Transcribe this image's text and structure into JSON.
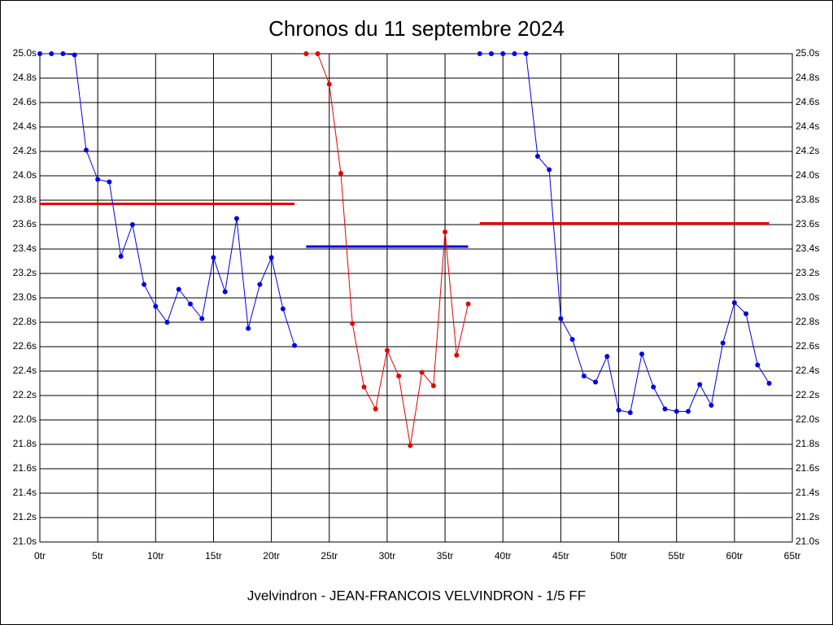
{
  "chart_data": {
    "type": "line",
    "title": "Chronos du 11 septembre 2024",
    "footer": "Jvelvindron - JEAN-FRANCOIS VELVINDRON - 1/5 FF",
    "xlim": [
      0,
      65
    ],
    "xticks": [
      {
        "value": 0,
        "label": "0tr"
      },
      {
        "value": 5,
        "label": "5tr"
      },
      {
        "value": 10,
        "label": "10tr"
      },
      {
        "value": 15,
        "label": "15tr"
      },
      {
        "value": 20,
        "label": "20tr"
      },
      {
        "value": 25,
        "label": "25tr"
      },
      {
        "value": 30,
        "label": "30tr"
      },
      {
        "value": 35,
        "label": "35tr"
      },
      {
        "value": 40,
        "label": "40tr"
      },
      {
        "value": 45,
        "label": "45tr"
      },
      {
        "value": 50,
        "label": "50tr"
      },
      {
        "value": 55,
        "label": "55tr"
      },
      {
        "value": 60,
        "label": "60tr"
      },
      {
        "value": 65,
        "label": "65tr"
      }
    ],
    "ylim": [
      21.0,
      25.0
    ],
    "yticks": [
      {
        "value": 21.0,
        "label": "21.0s"
      },
      {
        "value": 21.2,
        "label": "21.2s"
      },
      {
        "value": 21.4,
        "label": "21.4s"
      },
      {
        "value": 21.6,
        "label": "21.6s"
      },
      {
        "value": 21.8,
        "label": "21.8s"
      },
      {
        "value": 22.0,
        "label": "22.0s"
      },
      {
        "value": 22.2,
        "label": "22.2s"
      },
      {
        "value": 22.4,
        "label": "22.4s"
      },
      {
        "value": 22.6,
        "label": "22.6s"
      },
      {
        "value": 22.8,
        "label": "22.8s"
      },
      {
        "value": 23.0,
        "label": "23.0s"
      },
      {
        "value": 23.2,
        "label": "23.2s"
      },
      {
        "value": 23.4,
        "label": "23.4s"
      },
      {
        "value": 23.6,
        "label": "23.6s"
      },
      {
        "value": 23.8,
        "label": "23.8s"
      },
      {
        "value": 24.0,
        "label": "24.0s"
      },
      {
        "value": 24.2,
        "label": "24.2s"
      },
      {
        "value": 24.4,
        "label": "24.4s"
      },
      {
        "value": 24.6,
        "label": "24.6s"
      },
      {
        "value": 24.8,
        "label": "24.8s"
      },
      {
        "value": 25.0,
        "label": "25.0s"
      }
    ],
    "grid": true,
    "series": [
      {
        "color": "#0000e6",
        "x": [
          0,
          1,
          2,
          3,
          4,
          5,
          6,
          7,
          8,
          9,
          10,
          11,
          12,
          13,
          14,
          15,
          16,
          17,
          18,
          19,
          20,
          21,
          22
        ],
        "values": [
          25.0,
          25.0,
          25.0,
          24.99,
          24.21,
          23.97,
          23.95,
          23.34,
          23.6,
          23.11,
          22.93,
          22.8,
          23.07,
          22.95,
          22.83,
          23.33,
          23.05,
          23.65,
          22.75,
          23.11,
          23.33,
          22.91,
          22.61
        ]
      },
      {
        "color": "#e60000",
        "x": [
          23,
          24,
          25,
          26,
          27,
          28,
          29,
          30,
          31,
          32,
          33,
          34,
          35,
          36,
          37
        ],
        "values": [
          25.0,
          25.0,
          24.75,
          24.02,
          22.79,
          22.27,
          22.09,
          22.57,
          22.36,
          21.79,
          22.39,
          22.28,
          23.54,
          22.53,
          22.95
        ]
      },
      {
        "color": "#0000e6",
        "x": [
          38,
          39,
          40,
          41,
          42,
          43,
          44,
          45,
          46,
          47,
          48,
          49,
          50,
          51,
          52,
          53,
          54,
          55,
          56,
          57,
          58,
          59,
          60,
          61,
          62,
          63
        ],
        "values": [
          25.0,
          25.0,
          25.0,
          25.0,
          25.0,
          24.16,
          24.05,
          22.83,
          22.66,
          22.36,
          22.31,
          22.52,
          22.08,
          22.06,
          22.54,
          22.27,
          22.09,
          22.07,
          22.07,
          22.29,
          22.12,
          22.63,
          22.96,
          22.87,
          22.45,
          22.3
        ]
      }
    ],
    "average_lines": [
      {
        "color": "#e60000",
        "x": [
          0,
          22
        ],
        "values": [
          23.77,
          23.77
        ]
      },
      {
        "color": "#0000e6",
        "x": [
          23,
          37
        ],
        "values": [
          23.42,
          23.42
        ]
      },
      {
        "color": "#e60000",
        "x": [
          38,
          63
        ],
        "values": [
          23.61,
          23.61
        ]
      }
    ]
  }
}
